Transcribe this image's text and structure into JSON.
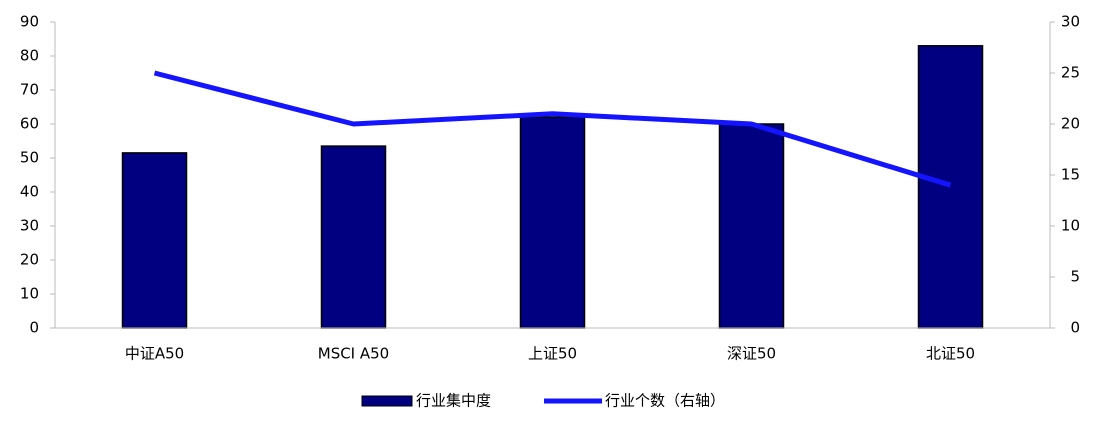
{
  "chart_data": {
    "type": "combo",
    "categories": [
      "中证A50",
      "MSCI A50",
      "上证50",
      "深证50",
      "北证50"
    ],
    "series": [
      {
        "name": "行业集中度",
        "type": "bar",
        "color": "#000080",
        "values": [
          51.5,
          53.5,
          62,
          60,
          83
        ]
      },
      {
        "name": "行业个数（右轴）",
        "type": "line",
        "color": "#1414ff",
        "axis": "y2",
        "values": [
          25,
          20,
          21,
          20,
          14
        ]
      }
    ],
    "ylim": [
      0,
      90
    ],
    "yticks": [
      0,
      10,
      20,
      30,
      40,
      50,
      60,
      70,
      80,
      90
    ],
    "y2lim": [
      0,
      30
    ],
    "y2ticks": [
      0,
      5,
      10,
      15,
      20,
      25,
      30
    ],
    "legend": "bottom"
  }
}
